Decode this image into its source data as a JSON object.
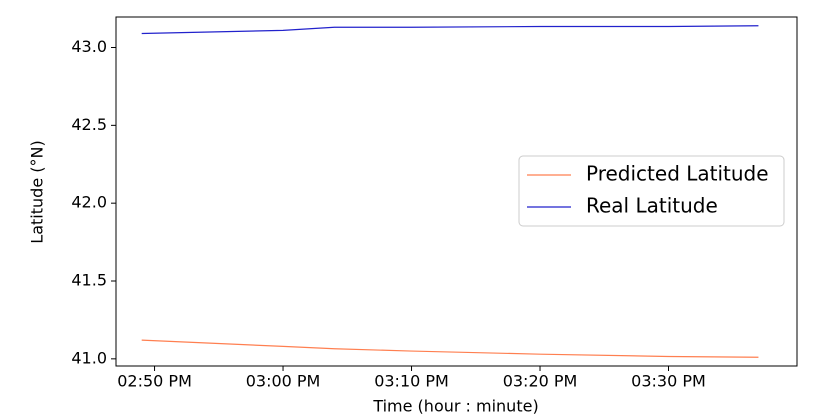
{
  "chart_data": {
    "type": "line",
    "x_label": "Time (hour : minute)",
    "y_label": "Latitude (°N)",
    "x": [
      "02:49 PM",
      "03:00 PM",
      "03:04 PM",
      "03:10 PM",
      "03:20 PM",
      "03:30 PM",
      "03:37 PM"
    ],
    "series": [
      {
        "name": "Predicted Latitude",
        "color": "#ff7f50",
        "values": [
          41.12,
          41.08,
          41.065,
          41.05,
          41.03,
          41.015,
          41.01
        ]
      },
      {
        "name": "Real Latitude",
        "color": "#2222cc",
        "values": [
          43.09,
          43.11,
          43.13,
          43.13,
          43.135,
          43.135,
          43.14
        ]
      }
    ],
    "xlim": [
      "02:47 PM",
      "03:40 PM"
    ],
    "xticks": [
      "02:50 PM",
      "03:00 PM",
      "03:10 PM",
      "03:20 PM",
      "03:30 PM"
    ],
    "ylim": [
      40.954,
      43.196
    ],
    "yticks": [
      {
        "value": 41,
        "label": "41.0"
      },
      41.5,
      {
        "value": 42,
        "label": "42.0"
      },
      42.5,
      {
        "value": 43,
        "label": "43.0"
      }
    ],
    "grid": false,
    "legend": "right"
  }
}
